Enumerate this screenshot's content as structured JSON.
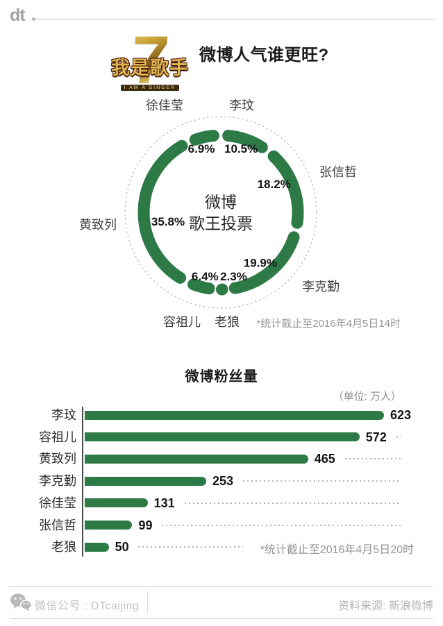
{
  "brand": {
    "logo_text": "dt"
  },
  "show_logo": {
    "number": "7",
    "name": "我是歌手",
    "subtitle": "I AM A SINGER"
  },
  "title": "微博人气谁更旺?",
  "chart_data": [
    {
      "type": "pie",
      "variant": "donut",
      "title": "微博歌王投票",
      "center_label_lines": [
        "微博",
        "歌王投票"
      ],
      "labels": [
        "李玟",
        "张信哲",
        "李克勤",
        "老狼",
        "容祖儿",
        "黄致列",
        "徐佳莹"
      ],
      "values": [
        10.5,
        18.2,
        19.9,
        2.3,
        6.4,
        35.8,
        6.9
      ],
      "unit": "%",
      "start_angle_deg": 0,
      "direction": "clockwise",
      "legend_position": "outside",
      "color": "#2d7a46",
      "note": "*统计截止至2016年4月5日14时"
    },
    {
      "type": "bar",
      "orientation": "horizontal",
      "title": "微博粉丝量",
      "unit_label": "（单位: 万人）",
      "categories": [
        "李玟",
        "容祖儿",
        "黄致列",
        "李克勤",
        "徐佳莹",
        "张信哲",
        "老狼"
      ],
      "values": [
        623,
        572,
        465,
        253,
        131,
        99,
        50
      ],
      "xlim": [
        0,
        623
      ],
      "grid": false,
      "color": "#2d7a46",
      "note": "*统计截止至2016年4月5日20时"
    }
  ],
  "footer": {
    "left": "微信公号 : DTcaijing",
    "right": "资料来源: 新浪微博"
  }
}
